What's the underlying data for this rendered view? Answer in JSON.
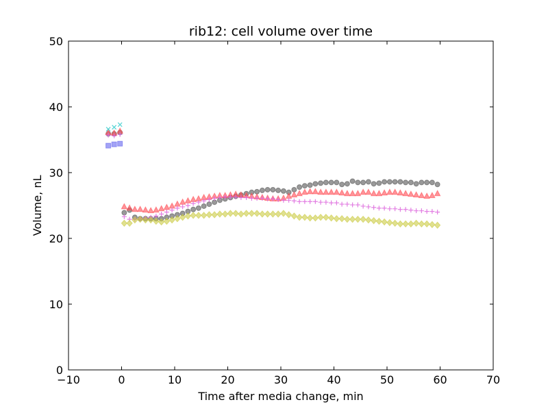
{
  "chart_data": {
    "type": "scatter",
    "title": "rib12: cell volume over time",
    "xlabel": "Time after media change, min",
    "ylabel": "Volume, nL",
    "xlim": [
      -10,
      70
    ],
    "ylim": [
      0,
      50
    ],
    "xticks": [
      -10,
      0,
      10,
      20,
      30,
      40,
      50,
      60,
      70
    ],
    "yticks": [
      0,
      10,
      20,
      30,
      40,
      50
    ],
    "xtick_labels": [
      "−10",
      "0",
      "10",
      "20",
      "30",
      "40",
      "50",
      "60",
      "70"
    ],
    "ytick_labels": [
      "0",
      "10",
      "20",
      "30",
      "40",
      "50"
    ],
    "grid": false,
    "legend": "none",
    "series": [
      {
        "marker": "circle",
        "color": "#555555",
        "x": [
          -2.5,
          -1.4,
          -0.3,
          0.5,
          1.5,
          2.5,
          3.5,
          4.5,
          5.5,
          6.5,
          7.5,
          8.5,
          9.5,
          10.5,
          11.5,
          12.5,
          13.5,
          14.5,
          15.5,
          16.5,
          17.5,
          18.5,
          19.5,
          20.5,
          21.5,
          22.5,
          23.5,
          24.5,
          25.5,
          26.5,
          27.5,
          28.5,
          29.5,
          30.5,
          31.5,
          32.5,
          33.5,
          34.5,
          35.5,
          36.5,
          37.5,
          38.5,
          39.5,
          40.5,
          41.5,
          42.5,
          43.5,
          44.5,
          45.5,
          46.5,
          47.5,
          48.5,
          49.5,
          50.5,
          51.5,
          52.5,
          53.5,
          54.5,
          55.5,
          56.5,
          57.5,
          58.5,
          59.5
        ],
        "y": [
          35.9,
          35.9,
          36.1,
          23.9,
          24.3,
          23.2,
          23.0,
          23.0,
          23.0,
          23.0,
          23.0,
          23.2,
          23.4,
          23.6,
          23.8,
          24.1,
          24.4,
          24.6,
          24.9,
          25.2,
          25.5,
          25.8,
          26.0,
          26.2,
          26.4,
          26.6,
          26.8,
          27.0,
          27.1,
          27.3,
          27.4,
          27.4,
          27.3,
          27.2,
          27.0,
          27.4,
          27.8,
          28.0,
          28.1,
          28.3,
          28.4,
          28.5,
          28.5,
          28.5,
          28.2,
          28.3,
          28.7,
          28.5,
          28.5,
          28.6,
          28.3,
          28.4,
          28.6,
          28.6,
          28.6,
          28.6,
          28.5,
          28.5,
          28.3,
          28.5,
          28.5,
          28.5,
          28.2
        ]
      },
      {
        "marker": "triangle",
        "color": "#ff4d55",
        "x": [
          -2.5,
          -1.4,
          -0.3,
          0.5,
          1.5,
          2.5,
          3.5,
          4.5,
          5.5,
          6.5,
          7.5,
          8.5,
          9.5,
          10.5,
          11.5,
          12.5,
          13.5,
          14.5,
          15.5,
          16.5,
          17.5,
          18.5,
          19.5,
          20.5,
          21.5,
          22.5,
          23.5,
          24.5,
          25.5,
          26.5,
          27.5,
          28.5,
          29.5,
          30.5,
          31.5,
          32.5,
          33.5,
          34.5,
          35.5,
          36.5,
          37.5,
          38.5,
          39.5,
          40.5,
          41.5,
          42.5,
          43.5,
          44.5,
          45.5,
          46.5,
          47.5,
          48.5,
          49.5,
          50.5,
          51.5,
          52.5,
          53.5,
          54.5,
          55.5,
          56.5,
          57.5,
          58.5,
          59.5
        ],
        "y": [
          36.1,
          36.0,
          36.3,
          24.8,
          24.6,
          24.4,
          24.4,
          24.3,
          24.2,
          24.3,
          24.5,
          24.7,
          24.9,
          25.2,
          25.5,
          25.7,
          25.9,
          26.0,
          26.2,
          26.3,
          26.4,
          26.5,
          26.5,
          26.6,
          26.7,
          26.6,
          26.5,
          26.4,
          26.3,
          26.2,
          26.1,
          26.0,
          26.0,
          26.1,
          26.4,
          26.6,
          26.8,
          27.0,
          27.1,
          27.1,
          27.0,
          27.0,
          27.0,
          27.0,
          26.9,
          26.8,
          26.8,
          26.8,
          27.0,
          27.0,
          26.8,
          26.8,
          26.9,
          27.0,
          27.0,
          26.9,
          26.8,
          26.7,
          26.6,
          26.5,
          26.4,
          26.5,
          26.8
        ]
      },
      {
        "marker": "cross",
        "color": "#33cccc",
        "x": [
          -2.5,
          -1.4,
          -0.3
        ],
        "y": [
          36.6,
          36.9,
          37.3
        ]
      },
      {
        "marker": "square",
        "color": "#6666ee",
        "x": [
          -2.5,
          -1.4,
          -0.3
        ],
        "y": [
          34.1,
          34.3,
          34.4
        ]
      },
      {
        "marker": "plus",
        "color": "#dd66dd",
        "x": [
          -2.5,
          -1.4,
          -0.3,
          0.5,
          1.5,
          2.5,
          3.5,
          4.5,
          5.5,
          6.5,
          7.5,
          8.5,
          9.5,
          10.5,
          11.5,
          12.5,
          13.5,
          14.5,
          15.5,
          16.5,
          17.5,
          18.5,
          19.5,
          20.5,
          21.5,
          22.5,
          23.5,
          24.5,
          25.5,
          26.5,
          27.5,
          28.5,
          29.5,
          30.5,
          31.5,
          32.5,
          33.5,
          34.5,
          35.5,
          36.5,
          37.5,
          38.5,
          39.5,
          40.5,
          41.5,
          42.5,
          43.5,
          44.5,
          45.5,
          46.5,
          47.5,
          48.5,
          49.5,
          50.5,
          51.5,
          52.5,
          53.5,
          54.5,
          55.5,
          56.5,
          57.5,
          58.5,
          59.5
        ],
        "y": [
          35.7,
          35.6,
          35.8,
          23.3,
          22.9,
          22.9,
          23.0,
          23.1,
          23.2,
          23.4,
          23.7,
          24.0,
          24.3,
          24.6,
          24.8,
          25.0,
          25.3,
          25.5,
          25.7,
          25.9,
          26.1,
          26.2,
          26.3,
          26.3,
          26.3,
          26.2,
          26.2,
          26.1,
          26.1,
          26.1,
          26.0,
          26.0,
          25.9,
          25.8,
          25.8,
          25.7,
          25.6,
          25.6,
          25.6,
          25.6,
          25.5,
          25.5,
          25.4,
          25.4,
          25.2,
          25.2,
          25.1,
          25.1,
          24.9,
          24.8,
          24.7,
          24.6,
          24.6,
          24.5,
          24.5,
          24.4,
          24.4,
          24.3,
          24.2,
          24.2,
          24.1,
          24.1,
          24.0
        ]
      },
      {
        "marker": "diamond",
        "color": "#cccc44",
        "x": [
          0.5,
          1.5,
          2.5,
          3.5,
          4.5,
          5.5,
          6.5,
          7.5,
          8.5,
          9.5,
          10.5,
          11.5,
          12.5,
          13.5,
          14.5,
          15.5,
          16.5,
          17.5,
          18.5,
          19.5,
          20.5,
          21.5,
          22.5,
          23.5,
          24.5,
          25.5,
          26.5,
          27.5,
          28.5,
          29.5,
          30.5,
          31.5,
          32.5,
          33.5,
          34.5,
          35.5,
          36.5,
          37.5,
          38.5,
          39.5,
          40.5,
          41.5,
          42.5,
          43.5,
          44.5,
          45.5,
          46.5,
          47.5,
          48.5,
          49.5,
          50.5,
          51.5,
          52.5,
          53.5,
          54.5,
          55.5,
          56.5,
          57.5,
          58.5,
          59.5
        ],
        "y": [
          22.3,
          22.3,
          22.8,
          22.9,
          22.8,
          22.8,
          22.6,
          22.5,
          22.6,
          22.8,
          23.0,
          23.2,
          23.4,
          23.5,
          23.5,
          23.5,
          23.6,
          23.6,
          23.7,
          23.7,
          23.8,
          23.8,
          23.7,
          23.8,
          23.8,
          23.8,
          23.7,
          23.7,
          23.7,
          23.7,
          23.8,
          23.6,
          23.4,
          23.2,
          23.2,
          23.1,
          23.1,
          23.2,
          23.2,
          23.1,
          23.0,
          23.0,
          22.9,
          22.9,
          22.9,
          22.9,
          22.8,
          22.7,
          22.6,
          22.5,
          22.4,
          22.3,
          22.2,
          22.2,
          22.2,
          22.3,
          22.2,
          22.2,
          22.1,
          22.0
        ]
      }
    ]
  }
}
